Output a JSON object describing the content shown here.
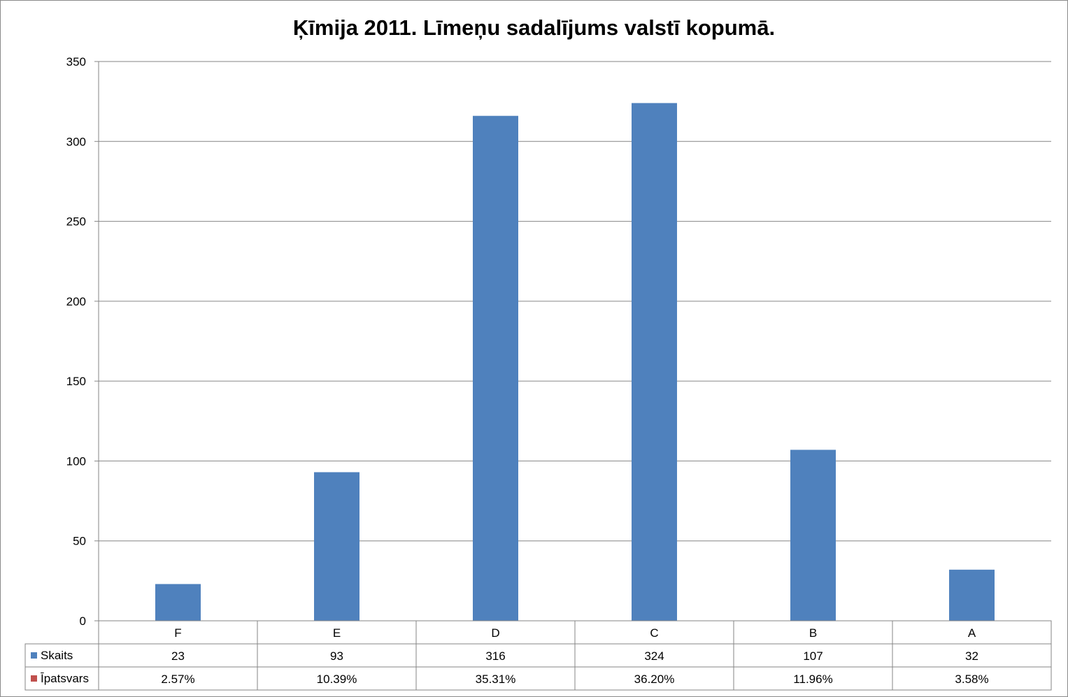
{
  "chart_data": {
    "type": "bar",
    "title": "Ķīmija 2011. Līmeņu sadalījums valstī kopumā.",
    "categories": [
      "F",
      "E",
      "D",
      "C",
      "B",
      "A"
    ],
    "series": [
      {
        "name": "Skaits",
        "values": [
          23,
          93,
          316,
          324,
          107,
          32
        ],
        "color": "#4f81bd"
      },
      {
        "name": "Īpatsvars",
        "values": [
          "2.57%",
          "10.39%",
          "35.31%",
          "36.20%",
          "11.96%",
          "3.58%"
        ],
        "color": "#c0504d"
      }
    ],
    "ylim": [
      0,
      350
    ],
    "yticks": [
      0,
      50,
      100,
      150,
      200,
      250,
      300,
      350
    ],
    "grid": true,
    "legend": "data-table-left"
  }
}
